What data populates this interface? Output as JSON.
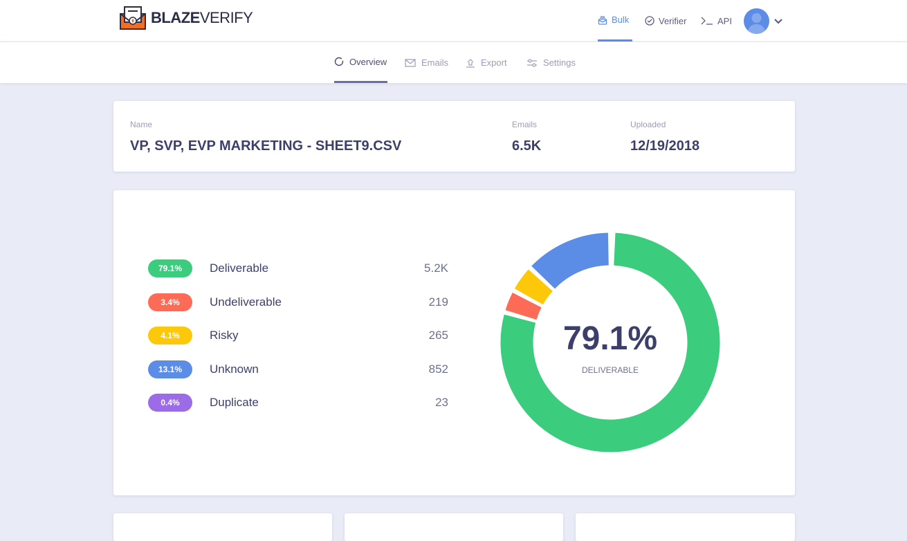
{
  "header": {
    "logo_bold": "BLAZE",
    "logo_light": "VERIFY",
    "nav": [
      {
        "label": "Bulk",
        "icon": "inbox-icon",
        "active": true
      },
      {
        "label": "Verifier",
        "icon": "check-circle-icon"
      },
      {
        "label": "API",
        "icon": "terminal-icon"
      }
    ]
  },
  "tabs": [
    {
      "label": "Overview",
      "icon": "circle-icon",
      "active": true
    },
    {
      "label": "Emails",
      "icon": "envelope-icon"
    },
    {
      "label": "Export",
      "icon": "upload-icon"
    },
    {
      "label": "Settings",
      "icon": "sliders-icon"
    }
  ],
  "file": {
    "name_label": "Name",
    "name": "VP, SVP, EVP MARKETING - SHEET9.CSV",
    "emails_label": "Emails",
    "emails": "6.5K",
    "uploaded_label": "Uploaded",
    "uploaded": "12/19/2018"
  },
  "summary": {
    "center_value": "79.1%",
    "center_label": "DELIVERABLE",
    "items": [
      {
        "percent": "79.1%",
        "label": "Deliverable",
        "count": "5.2K",
        "color": "#3ccc7e",
        "value": 79.1
      },
      {
        "percent": "3.4%",
        "label": "Undeliverable",
        "count": "219",
        "color": "#fb6b55",
        "value": 3.4
      },
      {
        "percent": "4.1%",
        "label": "Risky",
        "count": "265",
        "color": "#fdc80a",
        "value": 4.1
      },
      {
        "percent": "13.1%",
        "label": "Unknown",
        "count": "852",
        "color": "#5b8de6",
        "value": 13.1
      },
      {
        "percent": "0.4%",
        "label": "Duplicate",
        "count": "23",
        "color": "#9b6ce6",
        "value": 0.4
      }
    ]
  }
}
